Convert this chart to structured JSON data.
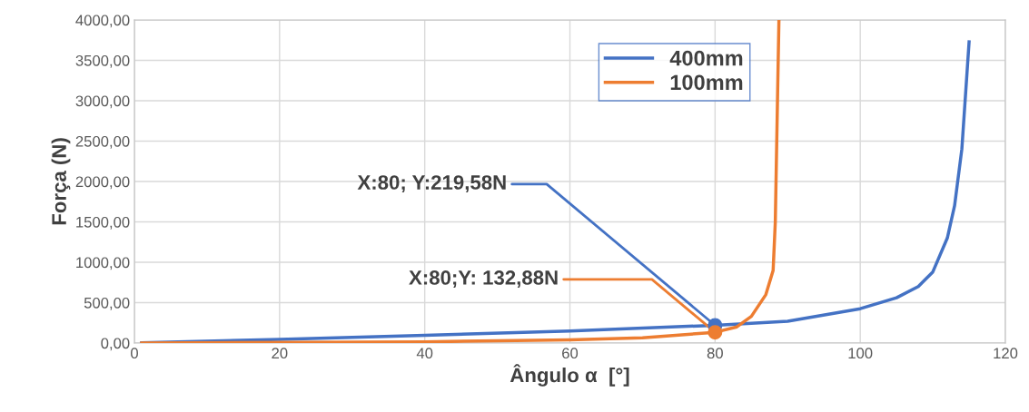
{
  "chart_data": {
    "type": "line",
    "xlabel": "Ângulo α  [°]",
    "ylabel": "Força (N)",
    "xlim": [
      0,
      120
    ],
    "xticks": [
      0,
      20,
      40,
      60,
      80,
      100,
      120
    ],
    "ylim": [
      0,
      4000
    ],
    "yticks": [
      {
        "value": 0,
        "label": "0,00"
      },
      {
        "value": 500,
        "label": "500,00"
      },
      {
        "value": 1000,
        "label": "1000,00"
      },
      {
        "value": 1500,
        "label": "1500,00"
      },
      {
        "value": 2000,
        "label": "2000,00"
      },
      {
        "value": 2500,
        "label": "2500,00"
      },
      {
        "value": 3000,
        "label": "3000,00"
      },
      {
        "value": 3500,
        "label": "3500,00"
      },
      {
        "value": 4000,
        "label": "4000,00"
      }
    ],
    "grid": true,
    "legend": "top",
    "marker": "none",
    "line_style": "solid",
    "series": [
      {
        "name": "400mm",
        "color": "#4472c4",
        "x": [
          1,
          20,
          40,
          60,
          80,
          90,
          100,
          105,
          108,
          110,
          112,
          113,
          114,
          115
        ],
        "values": [
          4,
          45,
          95,
          150,
          219.58,
          270,
          425,
          560,
          700,
          880,
          1300,
          1700,
          2400,
          3730
        ]
      },
      {
        "name": "100mm",
        "color": "#ed7d31",
        "x": [
          1,
          40,
          60,
          70,
          80,
          83,
          85,
          87,
          88,
          88.3,
          88.6,
          88.8
        ],
        "values": [
          1,
          15,
          40,
          65,
          132.88,
          200,
          330,
          600,
          900,
          1500,
          3000,
          4000
        ]
      },
      {
        "type": "scatter",
        "marker": "circle",
        "color": "#4472c4",
        "x": [
          80
        ],
        "values": [
          219.58
        ]
      },
      {
        "type": "scatter",
        "marker": "circle",
        "color": "#ed7d31",
        "x": [
          80
        ],
        "values": [
          132.88
        ]
      }
    ],
    "annotations": [
      {
        "text": "X:80; Y:219,58N",
        "x": 80,
        "y": 219.58
      },
      {
        "text": "X:80;Y: 132,88N",
        "x": 80,
        "y": 132.88
      }
    ]
  }
}
